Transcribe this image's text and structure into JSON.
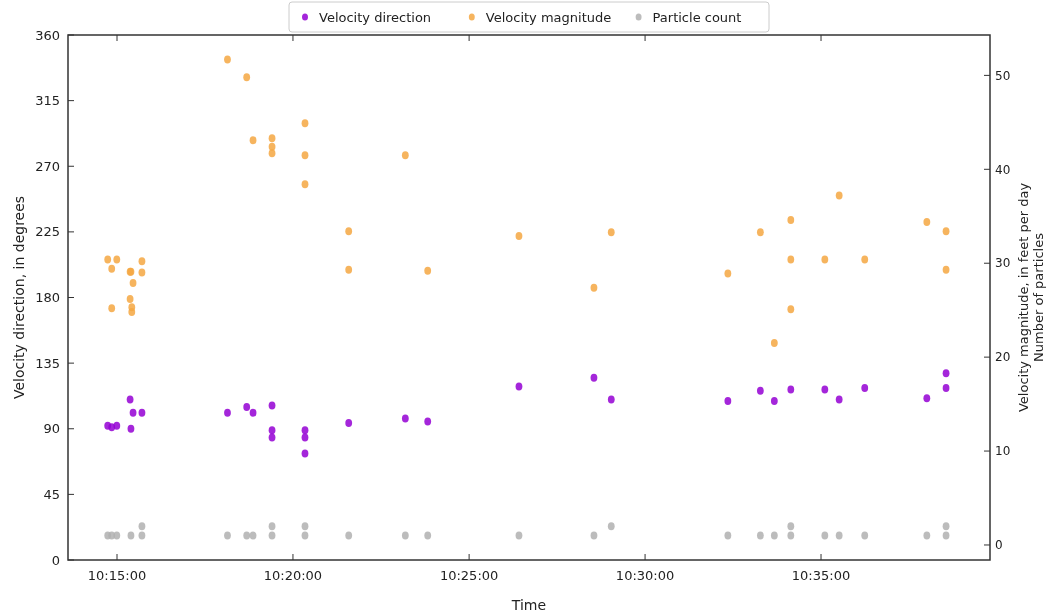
{
  "chart_data": {
    "type": "scatter",
    "xlabel": "Time",
    "ylabel": "Velocity direction, in degrees",
    "y2label": "Velocity magnitude, in feet per day\nNumber of particles",
    "xlim": [
      10.2268,
      10.6633
    ],
    "xticks": [
      {
        "value": 10.25,
        "label": "10:15:00"
      },
      {
        "value": 10.3333,
        "label": "10:20:00"
      },
      {
        "value": 10.4167,
        "label": "10:25:00"
      },
      {
        "value": 10.5,
        "label": "10:30:00"
      },
      {
        "value": 10.5833,
        "label": "10:35:00"
      }
    ],
    "ylim": [
      0,
      360
    ],
    "yticks": [
      0,
      45,
      90,
      135,
      180,
      225,
      270,
      315,
      360
    ],
    "y2lim": [
      -1.6,
      54.3
    ],
    "y2ticks": [
      0,
      10,
      20,
      30,
      40,
      50
    ],
    "legend": "top",
    "marker": "circle",
    "grid": false,
    "series": [
      {
        "name": "Velocity direction",
        "color": "#9400d3",
        "x": [
          10.2456,
          10.2475,
          10.2499,
          10.2562,
          10.2576,
          10.2566,
          10.2618,
          10.3023,
          10.3114,
          10.3144,
          10.3234,
          10.3234,
          10.3234,
          10.339,
          10.339,
          10.339,
          10.3597,
          10.3865,
          10.3971,
          10.4403,
          10.4758,
          10.484,
          10.5392,
          10.5546,
          10.5612,
          10.569,
          10.5851,
          10.5919,
          10.604,
          10.6334,
          10.6425,
          10.6425
        ],
        "values": [
          92,
          91,
          92,
          110,
          101,
          90,
          101,
          101,
          105,
          101,
          106,
          89,
          84,
          89,
          84,
          73,
          94,
          97,
          95,
          119,
          125,
          110,
          109,
          116,
          109,
          117,
          117,
          110,
          118,
          111,
          128,
          118
        ]
      },
      {
        "name": "Velocity magnitude",
        "color": "#f5a742",
        "axis": "y2",
        "x": [
          10.2456,
          10.2499,
          10.2475,
          10.2475,
          10.2562,
          10.2566,
          10.2576,
          10.2562,
          10.257,
          10.257,
          10.2618,
          10.2618,
          10.3023,
          10.3114,
          10.3144,
          10.3234,
          10.3234,
          10.3234,
          10.339,
          10.339,
          10.339,
          10.3597,
          10.3597,
          10.3865,
          10.3971,
          10.4403,
          10.4758,
          10.484,
          10.5392,
          10.5546,
          10.5612,
          10.569,
          10.569,
          10.569,
          10.5851,
          10.5919,
          10.604,
          10.6334,
          10.6425,
          10.6425
        ],
        "values": [
          30.4,
          30.4,
          29.4,
          25.2,
          29.1,
          29.1,
          27.9,
          26.2,
          25.3,
          24.8,
          30.2,
          29.0,
          51.7,
          49.8,
          43.1,
          43.3,
          42.4,
          41.7,
          44.9,
          41.5,
          38.4,
          33.4,
          29.3,
          41.5,
          29.2,
          32.9,
          27.4,
          33.3,
          28.9,
          33.3,
          21.5,
          34.6,
          30.4,
          25.1,
          30.4,
          37.2,
          30.4,
          34.4,
          33.4,
          29.3
        ]
      },
      {
        "name": "Particle count",
        "color": "#b0b0b0",
        "axis": "y2",
        "x": [
          10.2456,
          10.2475,
          10.2499,
          10.2566,
          10.2618,
          10.2618,
          10.3023,
          10.3114,
          10.3144,
          10.3234,
          10.3234,
          10.339,
          10.339,
          10.3597,
          10.3865,
          10.3971,
          10.4403,
          10.4758,
          10.484,
          10.5392,
          10.5546,
          10.5612,
          10.569,
          10.569,
          10.5851,
          10.5919,
          10.604,
          10.6334,
          10.6425,
          10.6425
        ],
        "values": [
          1,
          1,
          1,
          1,
          2,
          1,
          1,
          1,
          1,
          2,
          1,
          2,
          1,
          1,
          1,
          1,
          1,
          1,
          2,
          1,
          1,
          1,
          2,
          1,
          1,
          1,
          1,
          1,
          2,
          1
        ]
      }
    ]
  }
}
